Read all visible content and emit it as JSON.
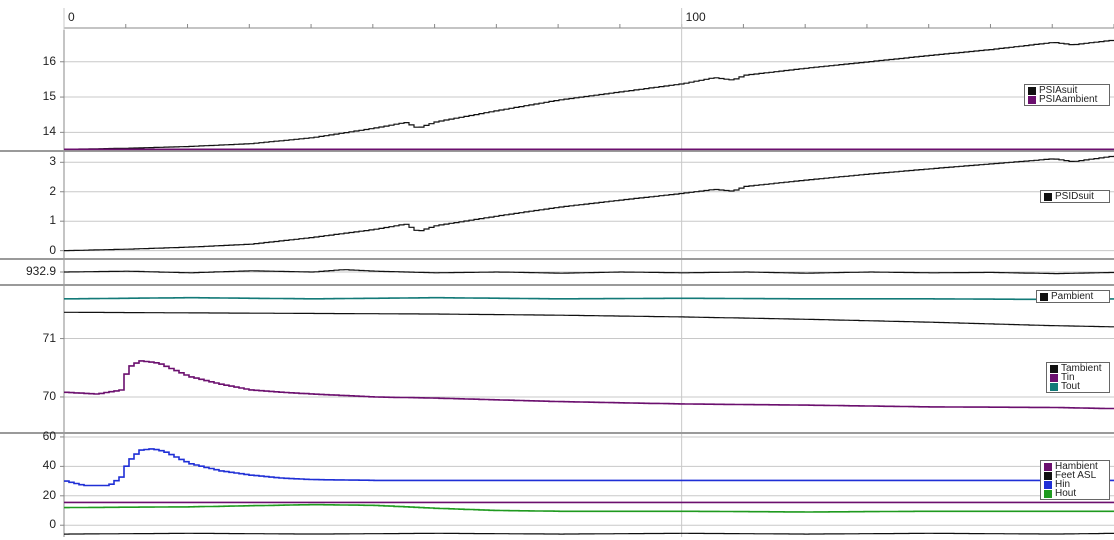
{
  "colors": {
    "black": "#111111",
    "purple": "#6b0f6e",
    "teal": "#137a78",
    "blue": "#1f2fd6",
    "green": "#1f9a1f",
    "grid": "#c8c8c8",
    "separator": "#9a9a9a"
  },
  "x_axis": {
    "range": [
      0,
      170
    ],
    "ticks": [
      "0",
      "100"
    ],
    "tick_values": [
      0,
      100
    ]
  },
  "chart_data": [
    {
      "type": "line",
      "ylim": [
        13.5,
        16.9
      ],
      "yticks": [
        14,
        15,
        16
      ],
      "legend": [
        "PSIAsuit",
        "PSIAambient"
      ],
      "legend_position": "right",
      "series": [
        {
          "name": "PSIAsuit",
          "color": "black",
          "x": [
            0,
            10,
            20,
            30,
            40,
            50,
            55,
            57,
            60,
            70,
            80,
            90,
            100,
            105,
            108,
            110,
            120,
            130,
            140,
            150,
            160,
            163,
            170
          ],
          "y": [
            13.52,
            13.55,
            13.6,
            13.68,
            13.85,
            14.12,
            14.28,
            14.12,
            14.3,
            14.62,
            14.92,
            15.15,
            15.38,
            15.55,
            15.48,
            15.62,
            15.82,
            16.0,
            16.18,
            16.35,
            16.55,
            16.48,
            16.62
          ]
        },
        {
          "name": "PSIAambient",
          "color": "purple",
          "x": [
            0,
            170
          ],
          "y": [
            13.52,
            13.52
          ]
        }
      ]
    },
    {
      "type": "line",
      "ylim": [
        -0.25,
        3.35
      ],
      "yticks": [
        0,
        1,
        2,
        3
      ],
      "legend": [
        "PSIDsuit"
      ],
      "legend_position": "right",
      "series": [
        {
          "name": "PSIDsuit",
          "color": "black",
          "x": [
            0,
            10,
            20,
            30,
            40,
            50,
            55,
            57,
            60,
            70,
            80,
            90,
            100,
            105,
            108,
            110,
            120,
            130,
            140,
            150,
            160,
            163,
            170
          ],
          "y": [
            0.0,
            0.05,
            0.12,
            0.22,
            0.45,
            0.72,
            0.9,
            0.65,
            0.85,
            1.18,
            1.48,
            1.72,
            1.95,
            2.08,
            2.02,
            2.18,
            2.4,
            2.6,
            2.78,
            2.95,
            3.12,
            3.02,
            3.22
          ]
        }
      ]
    },
    {
      "type": "line",
      "ylim": [
        932.6,
        933.2
      ],
      "yticks": [
        932.9
      ],
      "ytick_labels": [
        "932.9"
      ],
      "legend": [
        "Pambient"
      ],
      "legend_position": "right",
      "series": [
        {
          "name": "Pambient",
          "color": "black",
          "x": [
            0,
            10,
            20,
            30,
            40,
            45,
            50,
            60,
            70,
            80,
            90,
            100,
            110,
            120,
            130,
            140,
            150,
            160,
            170
          ],
          "y": [
            932.9,
            932.92,
            932.88,
            932.93,
            932.9,
            932.96,
            932.92,
            932.88,
            932.9,
            932.87,
            932.9,
            932.88,
            932.9,
            932.87,
            932.9,
            932.88,
            932.89,
            932.86,
            932.89
          ]
        }
      ]
    },
    {
      "type": "line",
      "ylim": [
        69.4,
        71.9
      ],
      "yticks": [
        70,
        71
      ],
      "legend": [
        "Tambient",
        "Tin",
        "Tout"
      ],
      "legend_position": "right",
      "series": [
        {
          "name": "Tambient",
          "color": "black",
          "x": [
            0,
            20,
            40,
            60,
            80,
            100,
            120,
            140,
            160,
            170
          ],
          "y": [
            71.45,
            71.44,
            71.43,
            71.42,
            71.4,
            71.37,
            71.33,
            71.28,
            71.22,
            71.2
          ]
        },
        {
          "name": "Tin",
          "color": "purple",
          "x": [
            0,
            5,
            9,
            10,
            12,
            15,
            20,
            25,
            30,
            35,
            40,
            50,
            60,
            70,
            80,
            90,
            100,
            120,
            140,
            160,
            170
          ],
          "y": [
            70.08,
            70.05,
            70.12,
            70.5,
            70.62,
            70.58,
            70.35,
            70.22,
            70.12,
            70.08,
            70.05,
            70.0,
            69.98,
            69.95,
            69.92,
            69.9,
            69.88,
            69.86,
            69.83,
            69.82,
            69.8
          ]
        },
        {
          "name": "Tout",
          "color": "teal",
          "x": [
            0,
            20,
            40,
            60,
            80,
            100,
            120,
            140,
            160,
            170
          ],
          "y": [
            71.68,
            71.7,
            71.68,
            71.7,
            71.68,
            71.69,
            71.68,
            71.68,
            71.67,
            71.68
          ]
        }
      ]
    },
    {
      "type": "line",
      "ylim": [
        -8,
        62
      ],
      "yticks": [
        0,
        20,
        40,
        60
      ],
      "legend": [
        "Hambient",
        "Feet ASL",
        "Hin",
        "Hout"
      ],
      "legend_position": "right",
      "series": [
        {
          "name": "Hambient",
          "color": "purple",
          "x": [
            0,
            170
          ],
          "y": [
            15.5,
            15.5
          ]
        },
        {
          "name": "Feet ASL",
          "color": "black",
          "x": [
            0,
            20,
            40,
            60,
            80,
            100,
            120,
            140,
            160,
            170
          ],
          "y": [
            -6,
            -5.5,
            -6,
            -5.5,
            -6,
            -5.5,
            -6,
            -5.5,
            -6,
            -5.5
          ]
        },
        {
          "name": "Hin",
          "color": "blue",
          "x": [
            0,
            3,
            7,
            9,
            10,
            12,
            14,
            16,
            18,
            20,
            25,
            30,
            35,
            40,
            50,
            60,
            80,
            100,
            130,
            170
          ],
          "y": [
            30,
            27,
            27,
            33,
            43,
            51,
            52,
            50,
            46,
            42,
            37,
            34,
            32,
            31,
            30.5,
            30.5,
            30.5,
            30.5,
            30.5,
            30.5
          ]
        },
        {
          "name": "Hout",
          "color": "green",
          "x": [
            0,
            20,
            40,
            50,
            60,
            70,
            80,
            100,
            120,
            140,
            170
          ],
          "y": [
            12,
            12.5,
            14,
            13.5,
            11.5,
            10,
            9.5,
            9.5,
            9,
            9.5,
            9.5
          ]
        }
      ]
    }
  ]
}
